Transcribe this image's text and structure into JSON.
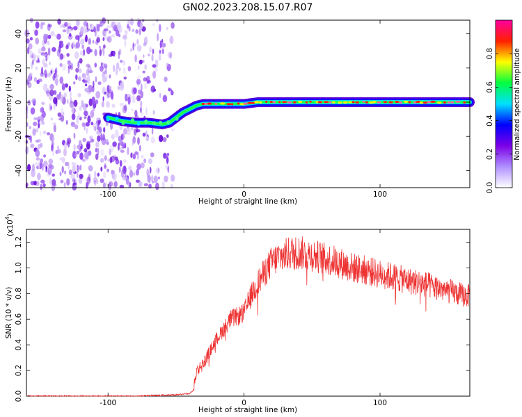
{
  "title": "GN02.2023.208.15.07.R07",
  "chart_data": [
    {
      "type": "heatmap",
      "xlabel": "Height of straight line (km)",
      "ylabel": "Frequency (Hz)",
      "xlim": [
        -160,
        166
      ],
      "ylim": [
        -50,
        48
      ],
      "x_ticks": [
        "-100",
        "0",
        "100"
      ],
      "y_ticks": [
        "40",
        "20",
        "0",
        "-20",
        "-40"
      ],
      "colorbar": {
        "label": "Normalized spectral amplitude",
        "range": [
          0,
          1
        ],
        "ticks": [
          "0.0",
          "0.2",
          "0.4",
          "0.6",
          "0.8"
        ],
        "colors": [
          "#ffffff",
          "#b090ff",
          "#7b00e6",
          "#0000ff",
          "#00e0ff",
          "#00ff40",
          "#ffff00",
          "#ff2000",
          "#ff00a0"
        ]
      },
      "trace": {
        "x": [
          -100,
          -90,
          -80,
          -70,
          -60,
          -55,
          -50,
          -45,
          -40,
          -35,
          -30,
          -20,
          -10,
          0,
          10,
          20,
          40,
          60,
          80,
          100,
          120,
          140,
          166
        ],
        "frequency": [
          -9,
          -11,
          -12,
          -12,
          -13,
          -12,
          -9,
          -6,
          -4,
          -2,
          -1,
          -1,
          -1,
          -1,
          0,
          0,
          0,
          0,
          0,
          0,
          0,
          0,
          0
        ]
      },
      "noise_region_x": [
        -160,
        -52
      ]
    },
    {
      "type": "line",
      "xlabel": "Height of straight line (km)",
      "ylabel": "SNR (10 * v/v)",
      "y_multiplier": "(x10",
      "y_multiplier_exp": "4",
      "y_multiplier_close": ")",
      "xlim": [
        -160,
        166
      ],
      "ylim": [
        0,
        1.3
      ],
      "x_ticks": [
        "-100",
        "0",
        "100"
      ],
      "y_ticks": [
        "0.0",
        "0.2",
        "0.4",
        "0.6",
        "0.8",
        "1.0",
        "1.2"
      ],
      "color": "#ee3333",
      "series": [
        {
          "x": [
            -160,
            -120,
            -80,
            -50,
            -40,
            -37,
            -35,
            -30,
            -25,
            -20,
            -15,
            -10,
            -5,
            0,
            5,
            10,
            15,
            20,
            25,
            30,
            35,
            40,
            50,
            60,
            70,
            80,
            90,
            100,
            110,
            120,
            130,
            140,
            150,
            160,
            166
          ],
          "values": [
            0.0,
            0.0,
            0.0,
            0.01,
            0.02,
            0.05,
            0.2,
            0.25,
            0.35,
            0.45,
            0.52,
            0.6,
            0.62,
            0.65,
            0.78,
            0.88,
            0.96,
            1.04,
            1.08,
            1.1,
            1.12,
            1.12,
            1.1,
            1.07,
            1.04,
            1.0,
            0.98,
            0.95,
            0.93,
            0.9,
            0.88,
            0.85,
            0.82,
            0.79,
            0.78
          ]
        }
      ]
    }
  ]
}
